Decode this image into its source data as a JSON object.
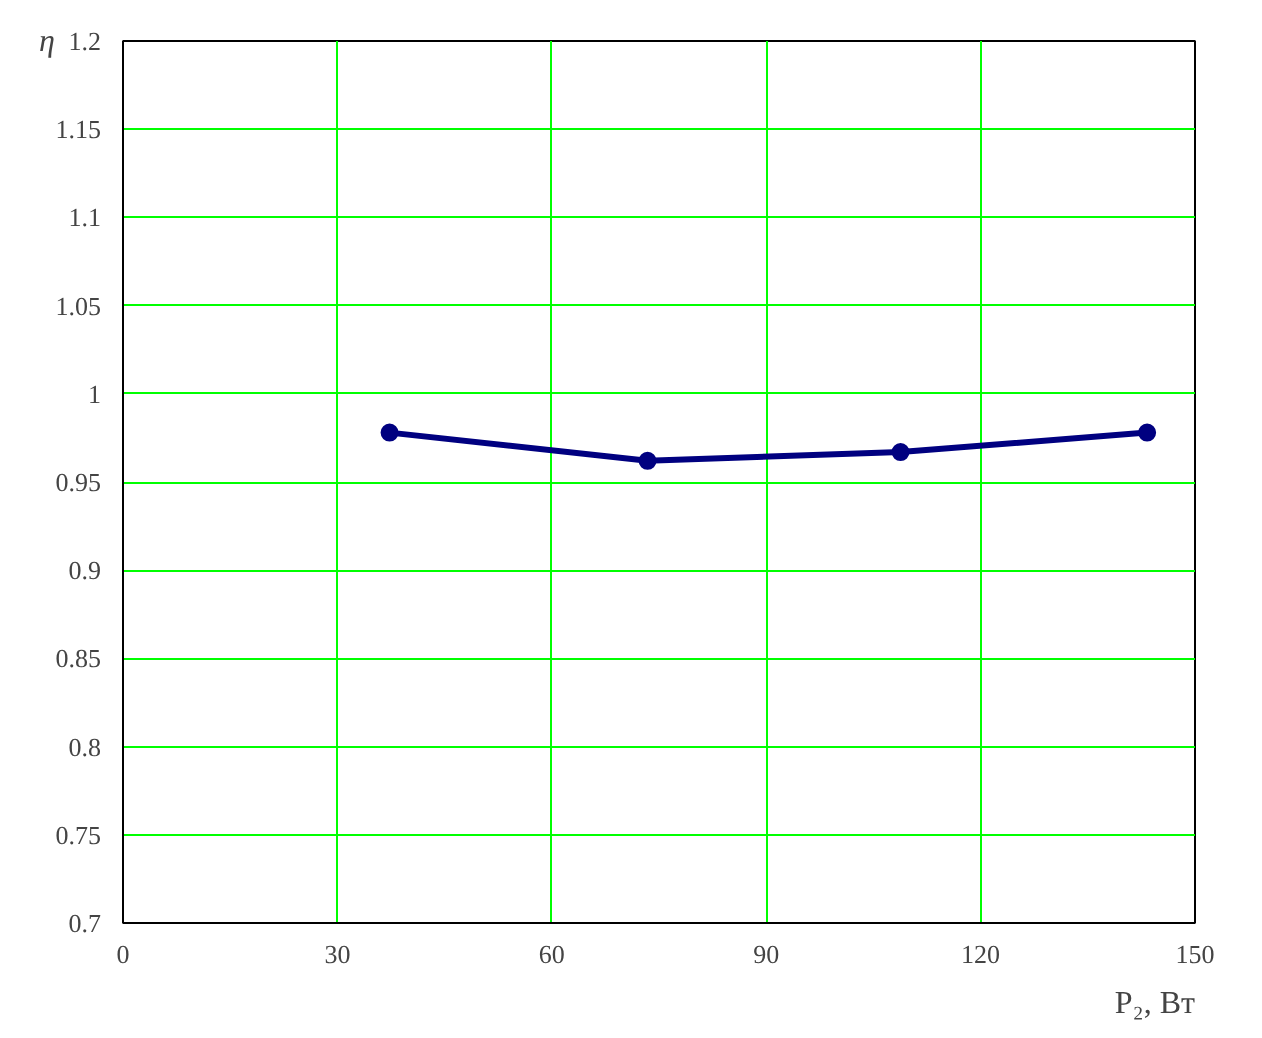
{
  "chart_data": {
    "type": "line",
    "xlabel": "P₂, Вт",
    "ylabel": "η",
    "x": [
      37.3,
      73.4,
      108.8,
      143.3
    ],
    "series": [
      {
        "color": "#000080",
        "values": [
          0.978,
          0.962,
          0.967,
          0.978
        ]
      }
    ],
    "xlim": [
      0,
      150
    ],
    "xticks": [
      0,
      30,
      60,
      90,
      120,
      150
    ],
    "ylim": [
      0.7,
      1.2
    ],
    "yticks": [
      0.7,
      0.75,
      0.8,
      0.85,
      0.9,
      0.95,
      1,
      1.05,
      1.1,
      1.15,
      1.2
    ],
    "grid": true,
    "marker": "circle",
    "line_style": "solid"
  }
}
